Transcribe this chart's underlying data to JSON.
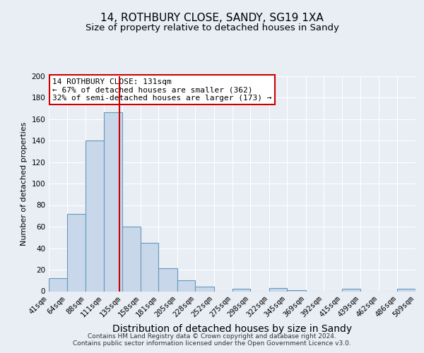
{
  "title": "14, ROTHBURY CLOSE, SANDY, SG19 1XA",
  "subtitle": "Size of property relative to detached houses in Sandy",
  "xlabel": "Distribution of detached houses by size in Sandy",
  "ylabel": "Number of detached properties",
  "bin_edges": [
    41,
    64,
    88,
    111,
    135,
    158,
    181,
    205,
    228,
    252,
    275,
    298,
    322,
    345,
    369,
    392,
    415,
    439,
    462,
    486,
    509
  ],
  "bar_heights": [
    12,
    72,
    140,
    166,
    60,
    45,
    21,
    10,
    4,
    0,
    2,
    0,
    3,
    1,
    0,
    0,
    2,
    0,
    0,
    2
  ],
  "bar_color": "#c8d8ea",
  "bar_edge_color": "#6699bb",
  "vline_x": 131,
  "vline_color": "#cc0000",
  "ylim": [
    0,
    200
  ],
  "yticks": [
    0,
    20,
    40,
    60,
    80,
    100,
    120,
    140,
    160,
    180,
    200
  ],
  "tick_labels": [
    "41sqm",
    "64sqm",
    "88sqm",
    "111sqm",
    "135sqm",
    "158sqm",
    "181sqm",
    "205sqm",
    "228sqm",
    "252sqm",
    "275sqm",
    "298sqm",
    "322sqm",
    "345sqm",
    "369sqm",
    "392sqm",
    "415sqm",
    "439sqm",
    "462sqm",
    "486sqm",
    "509sqm"
  ],
  "annotation_text": "14 ROTHBURY CLOSE: 131sqm\n← 67% of detached houses are smaller (362)\n32% of semi-detached houses are larger (173) →",
  "annotation_box_facecolor": "white",
  "annotation_box_edgecolor": "#cc0000",
  "footer_line1": "Contains HM Land Registry data © Crown copyright and database right 2024.",
  "footer_line2": "Contains public sector information licensed under the Open Government Licence v3.0.",
  "bg_color": "#e8eef4",
  "plot_bg_color": "#e8eef4",
  "grid_color": "white",
  "title_fontsize": 11,
  "subtitle_fontsize": 9.5,
  "xlabel_fontsize": 10,
  "ylabel_fontsize": 8,
  "tick_fontsize": 7.5,
  "annotation_fontsize": 8,
  "footer_fontsize": 6.5
}
